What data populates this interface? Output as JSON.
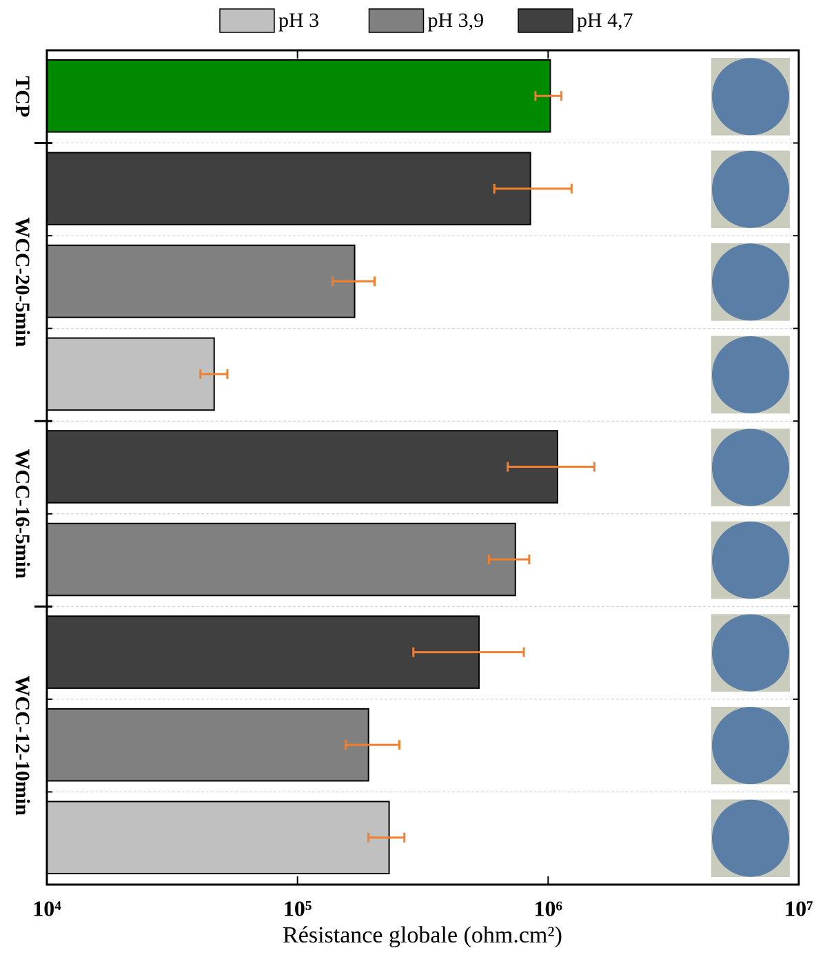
{
  "chart_data": {
    "type": "grouped-hbar",
    "xlabel": "Résistance globale (ohm.cm²)",
    "xscale": "log",
    "xlim": [
      10000,
      10000000
    ],
    "xticks": [
      {
        "value": 10000,
        "label": "10⁴"
      },
      {
        "value": 100000,
        "label": "10⁵"
      },
      {
        "value": 1000000,
        "label": "10⁶"
      },
      {
        "value": 10000000,
        "label": "10⁷"
      }
    ],
    "legend": [
      {
        "name": "pH 3",
        "color": "#c0c0c0"
      },
      {
        "name": "pH 3,9",
        "color": "#808080"
      },
      {
        "name": "pH 4,7",
        "color": "#404040"
      }
    ],
    "error_color": "#f08030",
    "groups": [
      {
        "label": "TCP",
        "bars": [
          {
            "value": 1020000,
            "error_low": 890000,
            "error_high": 1130000,
            "color": "#008a00"
          }
        ]
      },
      {
        "label": "WCC-20-5min",
        "bars": [
          {
            "value": 850000,
            "error_low": 610000,
            "error_high": 1240000,
            "color": "#404040"
          },
          {
            "value": 169000,
            "error_low": 138000,
            "error_high": 203000,
            "color": "#808080"
          },
          {
            "value": 46500,
            "error_low": 41000,
            "error_high": 52500,
            "color": "#c0c0c0"
          }
        ]
      },
      {
        "label": "WCC-16-5min",
        "bars": [
          {
            "value": 1090000,
            "error_low": 690000,
            "error_high": 1530000,
            "color": "#404040"
          },
          {
            "value": 740000,
            "error_low": 580000,
            "error_high": 840000,
            "color": "#808080"
          }
        ]
      },
      {
        "label": "WCC-12-10min",
        "bars": [
          {
            "value": 530000,
            "error_low": 290000,
            "error_high": 800000,
            "color": "#404040"
          },
          {
            "value": 192000,
            "error_low": 156000,
            "error_high": 255000,
            "color": "#808080"
          },
          {
            "value": 232000,
            "error_low": 192000,
            "error_high": 267000,
            "color": "#c0c0c0"
          }
        ]
      }
    ]
  }
}
